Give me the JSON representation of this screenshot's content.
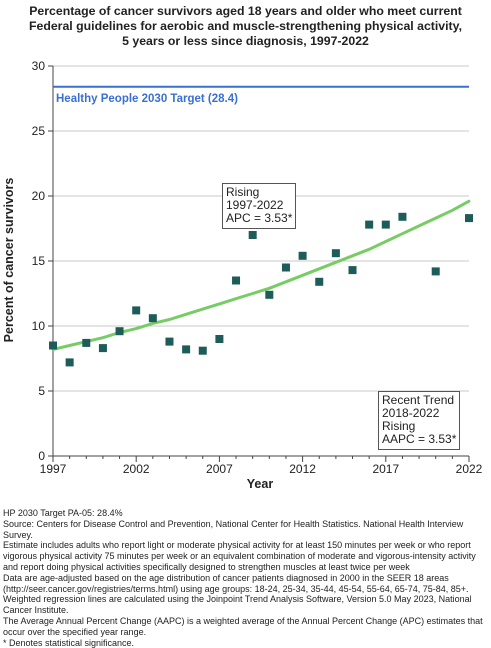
{
  "title_lines": [
    "Percentage of cancer survivors aged 18 years and older who meet current",
    "Federal guidelines for aerobic and muscle-strengthening physical activity,",
    "5 years or less since diagnosis,  1997-2022"
  ],
  "chart_data": {
    "type": "scatter",
    "title": "Percentage of cancer survivors aged 18 years and older who meet current Federal guidelines for aerobic and muscle-strengthening physical activity, 5 years or less since diagnosis, 1997-2022",
    "xlabel": "Year",
    "ylabel": "Percent of cancer survivors",
    "xlim": [
      1997,
      2022
    ],
    "ylim": [
      0,
      30
    ],
    "x_ticks": [
      "1997",
      "2002",
      "2007",
      "2012",
      "2017",
      "2022"
    ],
    "y_ticks": [
      "0",
      "5",
      "10",
      "15",
      "20",
      "25",
      "30"
    ],
    "grid": true,
    "series": [
      {
        "type": "scatter",
        "color": "#1d5c58",
        "points": [
          {
            "x": 1997,
            "y": 8.5
          },
          {
            "x": 1998,
            "y": 7.2
          },
          {
            "x": 1999,
            "y": 8.7
          },
          {
            "x": 2000,
            "y": 8.3
          },
          {
            "x": 2001,
            "y": 9.6
          },
          {
            "x": 2002,
            "y": 11.2
          },
          {
            "x": 2003,
            "y": 10.6
          },
          {
            "x": 2004,
            "y": 8.8
          },
          {
            "x": 2005,
            "y": 8.2
          },
          {
            "x": 2006,
            "y": 8.1
          },
          {
            "x": 2007,
            "y": 9.0
          },
          {
            "x": 2008,
            "y": 13.5
          },
          {
            "x": 2009,
            "y": 17.0
          },
          {
            "x": 2010,
            "y": 12.4
          },
          {
            "x": 2011,
            "y": 14.5
          },
          {
            "x": 2012,
            "y": 15.4
          },
          {
            "x": 2013,
            "y": 13.4
          },
          {
            "x": 2014,
            "y": 15.6
          },
          {
            "x": 2015,
            "y": 14.3
          },
          {
            "x": 2016,
            "y": 17.8
          },
          {
            "x": 2017,
            "y": 17.8
          },
          {
            "x": 2018,
            "y": 18.4
          },
          {
            "x": 2020,
            "y": 14.2
          },
          {
            "x": 2022,
            "y": 18.3
          }
        ]
      },
      {
        "type": "line",
        "color": "#77cc66",
        "points": [
          {
            "x": 1997,
            "y": 8.2
          },
          {
            "x": 1998,
            "y": 8.5
          },
          {
            "x": 1999,
            "y": 8.8
          },
          {
            "x": 2000,
            "y": 9.1
          },
          {
            "x": 2001,
            "y": 9.5
          },
          {
            "x": 2002,
            "y": 9.8
          },
          {
            "x": 2003,
            "y": 10.2
          },
          {
            "x": 2004,
            "y": 10.5
          },
          {
            "x": 2005,
            "y": 10.9
          },
          {
            "x": 2006,
            "y": 11.3
          },
          {
            "x": 2007,
            "y": 11.7
          },
          {
            "x": 2008,
            "y": 12.1
          },
          {
            "x": 2009,
            "y": 12.5
          },
          {
            "x": 2010,
            "y": 12.9
          },
          {
            "x": 2011,
            "y": 13.4
          },
          {
            "x": 2012,
            "y": 13.9
          },
          {
            "x": 2013,
            "y": 14.4
          },
          {
            "x": 2014,
            "y": 14.9
          },
          {
            "x": 2015,
            "y": 15.4
          },
          {
            "x": 2016,
            "y": 15.9
          },
          {
            "x": 2017,
            "y": 16.5
          },
          {
            "x": 2018,
            "y": 17.1
          },
          {
            "x": 2019,
            "y": 17.7
          },
          {
            "x": 2020,
            "y": 18.3
          },
          {
            "x": 2021,
            "y": 18.9
          },
          {
            "x": 2022,
            "y": 19.6
          }
        ]
      }
    ],
    "target": {
      "value": 28.4,
      "label": "Healthy People 2030 Target (28.4)",
      "color": "#3a6fd4"
    },
    "annotations": {
      "rising": [
        "Rising",
        "1997-2022",
        "APC =  3.53*"
      ],
      "recent": [
        "Recent Trend",
        "2018-2022",
        "Rising",
        "AAPC =  3.53*"
      ]
    }
  },
  "notes": [
    "HP 2030 Target PA-05: 28.4%",
    "Source: Centers for Disease Control and Prevention, National Center for Health Statistics. National Health Interview Survey.",
    "Estimate includes adults who report light or moderate physical activity for at least 150 minutes per week or who report vigorous physical activity 75 minutes per week or an equivalent combination of moderate and vigorous-intensity activity and report doing physical activities specifically designed to strengthen muscles at least twice per week",
    "Data are age-adjusted based on the age distribution of cancer patients diagnosed in 2000 in the SEER 18 areas (http://seer.cancer.gov/registries/terms.html) using age groups: 18-24, 25-34, 35-44, 45-54, 55-64, 65-74, 75-84, 85+.",
    "Weighted regression lines are calculated using the Joinpoint Trend Analysis Software, Version 5.0 May 2023, National Cancer Institute.",
    "The Average Annual Percent Change (AAPC) is a weighted average of the Annual Percent Change (APC) estimates that occur over the specified year range.",
    "* Denotes statistical significance."
  ]
}
